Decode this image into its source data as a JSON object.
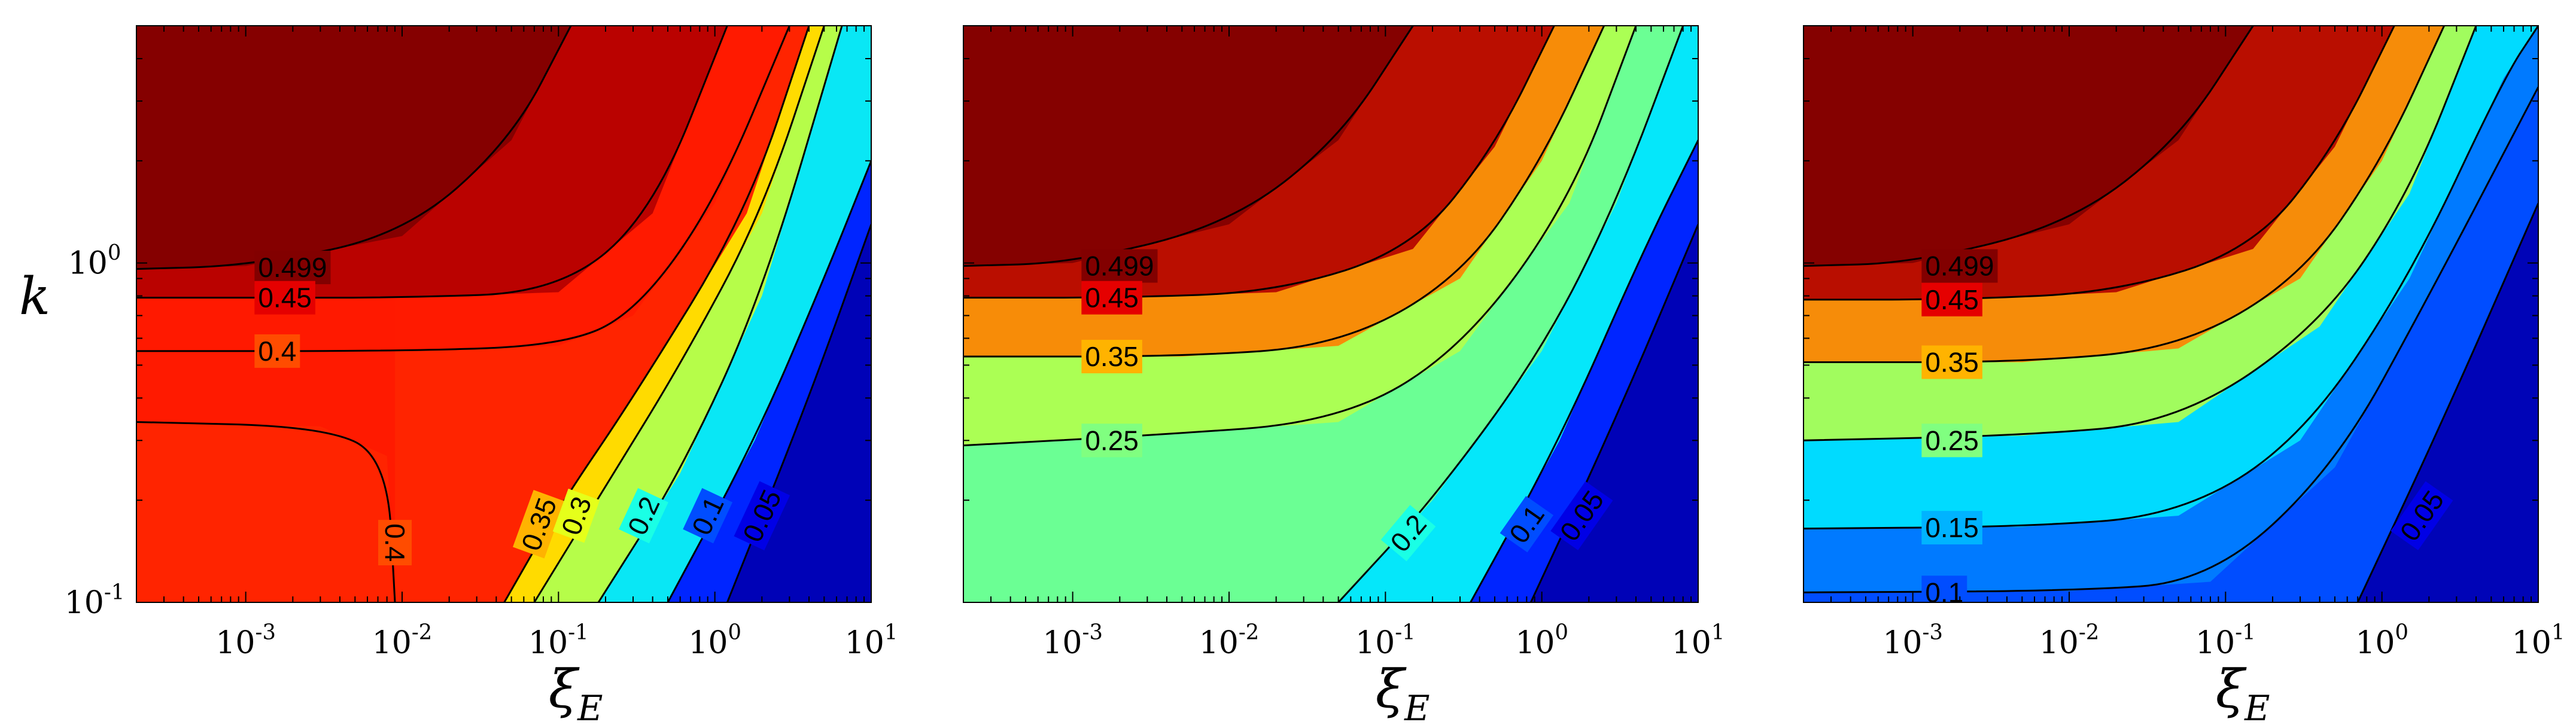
{
  "chart_data": [
    {
      "type": "heatmap",
      "title": "",
      "xlabel": "ξ_E",
      "ylabel": "k",
      "x_scale": "log",
      "y_scale": "log",
      "xlim": [
        0.0002,
        10
      ],
      "ylim": [
        0.1,
        5
      ],
      "x_ticks": [
        0.001,
        0.01,
        0.1,
        1,
        10
      ],
      "x_tick_labels": [
        [
          "10",
          "-3"
        ],
        [
          "10",
          "-2"
        ],
        [
          "10",
          "-1"
        ],
        [
          "10",
          "0"
        ],
        [
          "10",
          "1"
        ]
      ],
      "y_ticks": [
        0.1,
        1
      ],
      "y_tick_labels": [
        [
          "10",
          "-1"
        ],
        [
          "10",
          "0"
        ]
      ],
      "colormap": "jet",
      "color_range": [
        0,
        0.5
      ],
      "low_k_plateau": 0.42,
      "contours": [
        {
          "level": 0.499,
          "label": "0.499",
          "points": [
            [
              0.0002,
              0.96
            ],
            [
              0.001,
              0.98
            ],
            [
              0.01,
              1.2
            ],
            [
              0.05,
              2.3
            ],
            [
              0.12,
              5
            ]
          ],
          "label_at": [
            0.0012,
            0.97
          ]
        },
        {
          "level": 0.45,
          "label": "0.45",
          "points": [
            [
              0.0002,
              0.79
            ],
            [
              0.001,
              0.79
            ],
            [
              0.01,
              0.79
            ],
            [
              0.1,
              0.82
            ],
            [
              0.4,
              1.4
            ],
            [
              1.2,
              5
            ]
          ],
          "label_at": [
            0.0012,
            0.79
          ]
        },
        {
          "level": 0.4,
          "label": "0.4",
          "points": [
            [
              0.0002,
              0.55
            ],
            [
              0.01,
              0.55
            ],
            [
              0.1,
              0.57
            ],
            [
              0.3,
              0.7
            ],
            [
              1,
              1.5
            ],
            [
              3,
              5
            ]
          ],
          "label_at": [
            0.0012,
            0.55
          ]
        },
        {
          "level": 0.4,
          "label": "0.4",
          "points": [
            [
              0.0002,
              0.34
            ],
            [
              0.003,
              0.33
            ],
            [
              0.008,
              0.27
            ],
            [
              0.009,
              0.1
            ]
          ],
          "label_at": [
            0.009,
            0.15
          ],
          "label_angle": 90
        },
        {
          "level": 0.35,
          "label": "0.35",
          "points": [
            [
              0.045,
              0.1
            ],
            [
              0.1,
              0.19
            ],
            [
              0.3,
              0.4
            ],
            [
              1.6,
              1.4
            ],
            [
              4,
              5
            ]
          ],
          "label_at": [
            0.075,
            0.17
          ],
          "label_angle": -70
        },
        {
          "level": 0.3,
          "label": "0.3",
          "points": [
            [
              0.07,
              0.1
            ],
            [
              0.2,
              0.22
            ],
            [
              0.6,
              0.5
            ],
            [
              2,
              1.4
            ],
            [
              5,
              5
            ]
          ],
          "label_at": [
            0.13,
            0.18
          ],
          "label_angle": -70
        },
        {
          "level": 0.2,
          "label": "0.2",
          "points": [
            [
              0.18,
              0.1
            ],
            [
              0.6,
              0.24
            ],
            [
              2,
              0.8
            ],
            [
              6.5,
              5
            ]
          ],
          "label_at": [
            0.35,
            0.18
          ],
          "label_angle": -65
        },
        {
          "level": 0.1,
          "label": "0.1",
          "points": [
            [
              0.5,
              0.1
            ],
            [
              1.8,
              0.3
            ],
            [
              5,
              0.9
            ],
            [
              10,
              2
            ]
          ],
          "label_at": [
            0.9,
            0.18
          ],
          "label_angle": -65
        },
        {
          "level": 0.05,
          "label": "0.05",
          "points": [
            [
              1.2,
              0.1
            ],
            [
              4,
              0.4
            ],
            [
              10,
              1.3
            ]
          ],
          "label_at": [
            2,
            0.18
          ],
          "label_angle": -65
        }
      ]
    },
    {
      "type": "heatmap",
      "title": "",
      "xlabel": "ξ_E",
      "ylabel": "",
      "x_scale": "log",
      "y_scale": "log",
      "xlim": [
        0.0002,
        10
      ],
      "ylim": [
        0.1,
        5
      ],
      "x_ticks": [
        0.001,
        0.01,
        0.1,
        1,
        10
      ],
      "x_tick_labels": [
        [
          "10",
          "-3"
        ],
        [
          "10",
          "-2"
        ],
        [
          "10",
          "-1"
        ],
        [
          "10",
          "0"
        ],
        [
          "10",
          "1"
        ]
      ],
      "y_ticks": [
        0.1,
        1
      ],
      "y_tick_labels": [],
      "colormap": "jet",
      "color_range": [
        0,
        0.5
      ],
      "low_k_plateau": 0.24,
      "contours": [
        {
          "level": 0.499,
          "label": "0.499",
          "points": [
            [
              0.0002,
              0.98
            ],
            [
              0.001,
              1.0
            ],
            [
              0.01,
              1.3
            ],
            [
              0.05,
              2.3
            ],
            [
              0.15,
              5
            ]
          ],
          "label_at": [
            0.0012,
            0.98
          ]
        },
        {
          "level": 0.45,
          "label": "0.45",
          "points": [
            [
              0.0002,
              0.79
            ],
            [
              0.002,
              0.79
            ],
            [
              0.02,
              0.82
            ],
            [
              0.15,
              1.1
            ],
            [
              0.5,
              2.2
            ],
            [
              1.2,
              5
            ]
          ],
          "label_at": [
            0.0012,
            0.79
          ]
        },
        {
          "level": 0.35,
          "label": "0.35",
          "points": [
            [
              0.0002,
              0.53
            ],
            [
              0.005,
              0.53
            ],
            [
              0.05,
              0.57
            ],
            [
              0.3,
              0.9
            ],
            [
              1,
              2
            ],
            [
              2.5,
              5
            ]
          ],
          "label_at": [
            0.0012,
            0.53
          ]
        },
        {
          "level": 0.25,
          "label": "0.25",
          "points": [
            [
              0.0002,
              0.29
            ],
            [
              0.003,
              0.31
            ],
            [
              0.05,
              0.34
            ],
            [
              0.3,
              0.55
            ],
            [
              1.5,
              1.5
            ],
            [
              4,
              5
            ]
          ],
          "label_at": [
            0.0012,
            0.3
          ]
        },
        {
          "level": 0.2,
          "label": "0.2",
          "points": [
            [
              0.05,
              0.1
            ],
            [
              0.2,
              0.2
            ],
            [
              1,
              0.55
            ],
            [
              3,
              1.5
            ],
            [
              8,
              5
            ]
          ],
          "label_at": [
            0.14,
            0.16
          ],
          "label_angle": -50
        },
        {
          "level": 0.1,
          "label": "0.1",
          "points": [
            [
              0.35,
              0.1
            ],
            [
              1.3,
              0.3
            ],
            [
              4.5,
              1.1
            ],
            [
              10,
              2.3
            ]
          ],
          "label_at": [
            0.8,
            0.17
          ],
          "label_angle": -55
        },
        {
          "level": 0.05,
          "label": "0.05",
          "points": [
            [
              0.85,
              0.1
            ],
            [
              3,
              0.35
            ],
            [
              10,
              1.3
            ]
          ],
          "label_at": [
            1.8,
            0.18
          ],
          "label_angle": -55
        }
      ]
    },
    {
      "type": "heatmap",
      "title": "",
      "xlabel": "ξ_E",
      "ylabel": "",
      "x_scale": "log",
      "y_scale": "log",
      "xlim": [
        0.0002,
        10
      ],
      "ylim": [
        0.1,
        5
      ],
      "x_ticks": [
        0.001,
        0.01,
        0.1,
        1,
        10
      ],
      "x_tick_labels": [
        [
          "10",
          "-3"
        ],
        [
          "10",
          "-2"
        ],
        [
          "10",
          "-1"
        ],
        [
          "10",
          "0"
        ],
        [
          "10",
          "1"
        ]
      ],
      "y_ticks": [
        0.1,
        1
      ],
      "y_tick_labels": [],
      "colormap": "jet",
      "color_range": [
        0,
        0.5
      ],
      "low_k_plateau": 0.1,
      "contours": [
        {
          "level": 0.499,
          "label": "0.499",
          "points": [
            [
              0.0002,
              0.98
            ],
            [
              0.001,
              1.0
            ],
            [
              0.01,
              1.3
            ],
            [
              0.05,
              2.3
            ],
            [
              0.15,
              5
            ]
          ],
          "label_at": [
            0.0012,
            0.98
          ]
        },
        {
          "level": 0.45,
          "label": "0.45",
          "points": [
            [
              0.0002,
              0.78
            ],
            [
              0.002,
              0.78
            ],
            [
              0.02,
              0.82
            ],
            [
              0.15,
              1.1
            ],
            [
              0.5,
              2.2
            ],
            [
              1.2,
              5
            ]
          ],
          "label_at": [
            0.0012,
            0.78
          ]
        },
        {
          "level": 0.35,
          "label": "0.35",
          "points": [
            [
              0.0002,
              0.51
            ],
            [
              0.005,
              0.51
            ],
            [
              0.05,
              0.56
            ],
            [
              0.3,
              0.9
            ],
            [
              1,
              2
            ],
            [
              2.5,
              5
            ]
          ],
          "label_at": [
            0.0012,
            0.51
          ]
        },
        {
          "level": 0.25,
          "label": "0.25",
          "points": [
            [
              0.0002,
              0.3
            ],
            [
              0.005,
              0.31
            ],
            [
              0.05,
              0.34
            ],
            [
              0.4,
              0.65
            ],
            [
              1.5,
              1.6
            ],
            [
              4,
              5
            ]
          ],
          "label_at": [
            0.0012,
            0.3
          ]
        },
        {
          "level": 0.15,
          "label": "0.15",
          "points": [
            [
              0.0002,
              0.165
            ],
            [
              0.005,
              0.167
            ],
            [
              0.05,
              0.18
            ],
            [
              0.3,
              0.3
            ],
            [
              1.5,
              0.9
            ],
            [
              6,
              3.5
            ],
            [
              10,
              5
            ]
          ],
          "label_at": [
            0.0012,
            0.166
          ]
        },
        {
          "level": 0.1,
          "label": "0.1",
          "points": [
            [
              0.0002,
              0.107
            ],
            [
              0.01,
              0.108
            ],
            [
              0.08,
              0.115
            ],
            [
              0.5,
              0.25
            ],
            [
              2,
              0.8
            ],
            [
              10,
              3.3
            ]
          ],
          "label_at": [
            0.0012,
            0.107
          ]
        },
        {
          "level": 0.05,
          "label": "0.05",
          "points": [
            [
              0.7,
              0.1
            ],
            [
              2.5,
              0.35
            ],
            [
              10,
              1.5
            ]
          ],
          "label_at": [
            1.8,
            0.18
          ],
          "label_angle": -55
        }
      ]
    }
  ]
}
